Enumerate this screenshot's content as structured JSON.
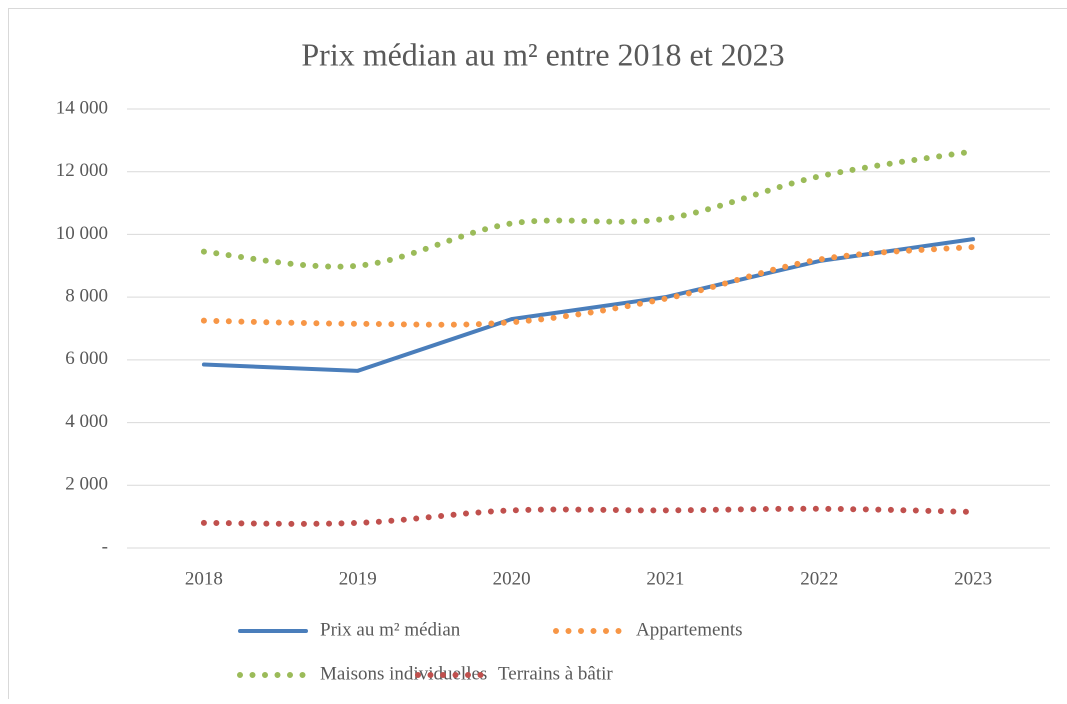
{
  "chart_data": {
    "type": "line",
    "title": "Prix médian au m² entre 2018 et 2023",
    "categories": [
      "2018",
      "2019",
      "2020",
      "2021",
      "2022",
      "2023"
    ],
    "series": [
      {
        "name": "Prix au m² médian",
        "color": "#4a7ebb",
        "style": "solid",
        "values": [
          5850,
          5650,
          7300,
          8000,
          9150,
          9850
        ]
      },
      {
        "name": "Appartements",
        "color": "#f79646",
        "style": "dotted",
        "values": [
          7250,
          7150,
          7200,
          7950,
          9200,
          9600
        ]
      },
      {
        "name": "Maisons individuelles",
        "color": "#9bbb59",
        "style": "dotted",
        "values": [
          9450,
          9000,
          10350,
          10500,
          11850,
          12650
        ]
      },
      {
        "name": "Terrains à bâtir",
        "color": "#c0504d",
        "style": "dotted",
        "values": [
          800,
          800,
          1200,
          1200,
          1250,
          1150
        ]
      }
    ],
    "ylim": [
      0,
      14000
    ],
    "yticks": [
      {
        "value": 0,
        "label": "-"
      },
      {
        "value": 2000,
        "label": "2 000"
      },
      {
        "value": 4000,
        "label": "4 000"
      },
      {
        "value": 6000,
        "label": "6 000"
      },
      {
        "value": 8000,
        "label": "8 000"
      },
      {
        "value": 10000,
        "label": "10 000"
      },
      {
        "value": 12000,
        "label": "12 000"
      },
      {
        "value": 14000,
        "label": "14 000"
      }
    ],
    "grid": true,
    "legend": "bottom"
  }
}
